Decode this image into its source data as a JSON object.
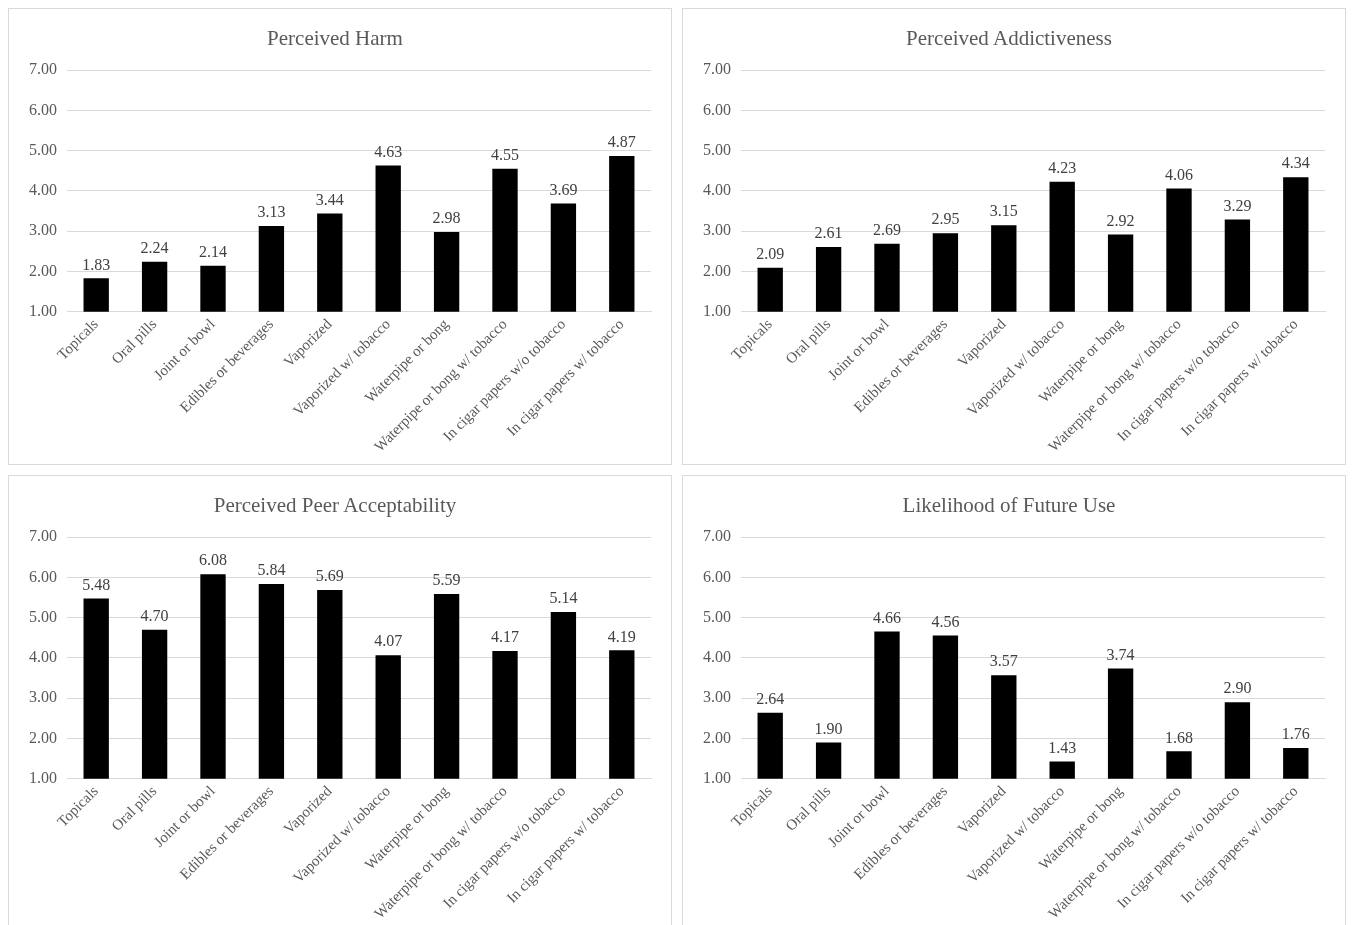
{
  "chart_data": [
    {
      "type": "bar",
      "title": "Perceived Harm",
      "categories": [
        "Topicals",
        "Oral pills",
        "Joint or bowl",
        "Edibles or beverages",
        "Vaporized",
        "Vaporized w/ tobacco",
        "Waterpipe or bong",
        "Waterpipe or bong w/ tobacco",
        "In cigar papers w/o tobacco",
        "In cigar papers w/ tobacco"
      ],
      "values": [
        1.83,
        2.24,
        2.14,
        3.13,
        3.44,
        4.63,
        2.98,
        4.55,
        3.69,
        4.87
      ],
      "value_labels": [
        "1.83",
        "2.24",
        "2.14",
        "3.13",
        "3.44",
        "4.63",
        "2.98",
        "4.55",
        "3.69",
        "4.87"
      ],
      "color": "#000000",
      "ylim": [
        1,
        7
      ],
      "yticks": [
        {
          "value": 1,
          "label": "1.00"
        },
        {
          "value": 2,
          "label": "2.00"
        },
        {
          "value": 3,
          "label": "3.00"
        },
        {
          "value": 4,
          "label": "4.00"
        },
        {
          "value": 5,
          "label": "5.00"
        },
        {
          "value": 6,
          "label": "6.00"
        },
        {
          "value": 7,
          "label": "7.00"
        }
      ],
      "grid": "y",
      "legend": false
    },
    {
      "type": "bar",
      "title": "Perceived Addictiveness",
      "categories": [
        "Topicals",
        "Oral pills",
        "Joint or bowl",
        "Edibles or beverages",
        "Vaporized",
        "Vaporized w/ tobacco",
        "Waterpipe or bong",
        "Waterpipe or bong w/ tobacco",
        "In cigar papers w/o tobacco",
        "In cigar papers w/ tobacco"
      ],
      "values": [
        2.09,
        2.61,
        2.69,
        2.95,
        3.15,
        4.23,
        2.92,
        4.06,
        3.29,
        4.34
      ],
      "value_labels": [
        "2.09",
        "2.61",
        "2.69",
        "2.95",
        "3.15",
        "4.23",
        "2.92",
        "4.06",
        "3.29",
        "4.34"
      ],
      "color": "#000000",
      "ylim": [
        1,
        7
      ],
      "yticks": [
        {
          "value": 1,
          "label": "1.00"
        },
        {
          "value": 2,
          "label": "2.00"
        },
        {
          "value": 3,
          "label": "3.00"
        },
        {
          "value": 4,
          "label": "4.00"
        },
        {
          "value": 5,
          "label": "5.00"
        },
        {
          "value": 6,
          "label": "6.00"
        },
        {
          "value": 7,
          "label": "7.00"
        }
      ],
      "grid": "y",
      "legend": false
    },
    {
      "type": "bar",
      "title": "Perceived Peer Acceptability",
      "categories": [
        "Topicals",
        "Oral pills",
        "Joint or bowl",
        "Edibles or beverages",
        "Vaporized",
        "Vaporized w/ tobacco",
        "Waterpipe or bong",
        "Waterpipe or bong w/ tobacco",
        "In cigar papers w/o tobacco",
        "In cigar papers w/ tobacco"
      ],
      "values": [
        5.48,
        4.7,
        6.08,
        5.84,
        5.69,
        4.07,
        5.59,
        4.17,
        5.14,
        4.19
      ],
      "value_labels": [
        "5.48",
        "4.70",
        "6.08",
        "5.84",
        "5.69",
        "4.07",
        "5.59",
        "4.17",
        "5.14",
        "4.19"
      ],
      "color": "#000000",
      "ylim": [
        1,
        7
      ],
      "yticks": [
        {
          "value": 1,
          "label": "1.00"
        },
        {
          "value": 2,
          "label": "2.00"
        },
        {
          "value": 3,
          "label": "3.00"
        },
        {
          "value": 4,
          "label": "4.00"
        },
        {
          "value": 5,
          "label": "5.00"
        },
        {
          "value": 6,
          "label": "6.00"
        },
        {
          "value": 7,
          "label": "7.00"
        }
      ],
      "grid": "y",
      "legend": false
    },
    {
      "type": "bar",
      "title": "Likelihood of Future Use",
      "categories": [
        "Topicals",
        "Oral pills",
        "Joint or bowl",
        "Edibles or beverages",
        "Vaporized",
        "Vaporized w/ tobacco",
        "Waterpipe or bong",
        "Waterpipe or bong w/ tobacco",
        "In cigar papers w/o tobacco",
        "In cigar papers w/ tobacco"
      ],
      "values": [
        2.64,
        1.9,
        4.66,
        4.56,
        3.57,
        1.43,
        3.74,
        1.68,
        2.9,
        1.76
      ],
      "value_labels": [
        "2.64",
        "1.90",
        "4.66",
        "4.56",
        "3.57",
        "1.43",
        "3.74",
        "1.68",
        "2.90",
        "1.76"
      ],
      "color": "#000000",
      "ylim": [
        1,
        7
      ],
      "yticks": [
        {
          "value": 1,
          "label": "1.00"
        },
        {
          "value": 2,
          "label": "2.00"
        },
        {
          "value": 3,
          "label": "3.00"
        },
        {
          "value": 4,
          "label": "4.00"
        },
        {
          "value": 5,
          "label": "5.00"
        },
        {
          "value": 6,
          "label": "6.00"
        },
        {
          "value": 7,
          "label": "7.00"
        }
      ],
      "grid": "y",
      "legend": false
    }
  ]
}
